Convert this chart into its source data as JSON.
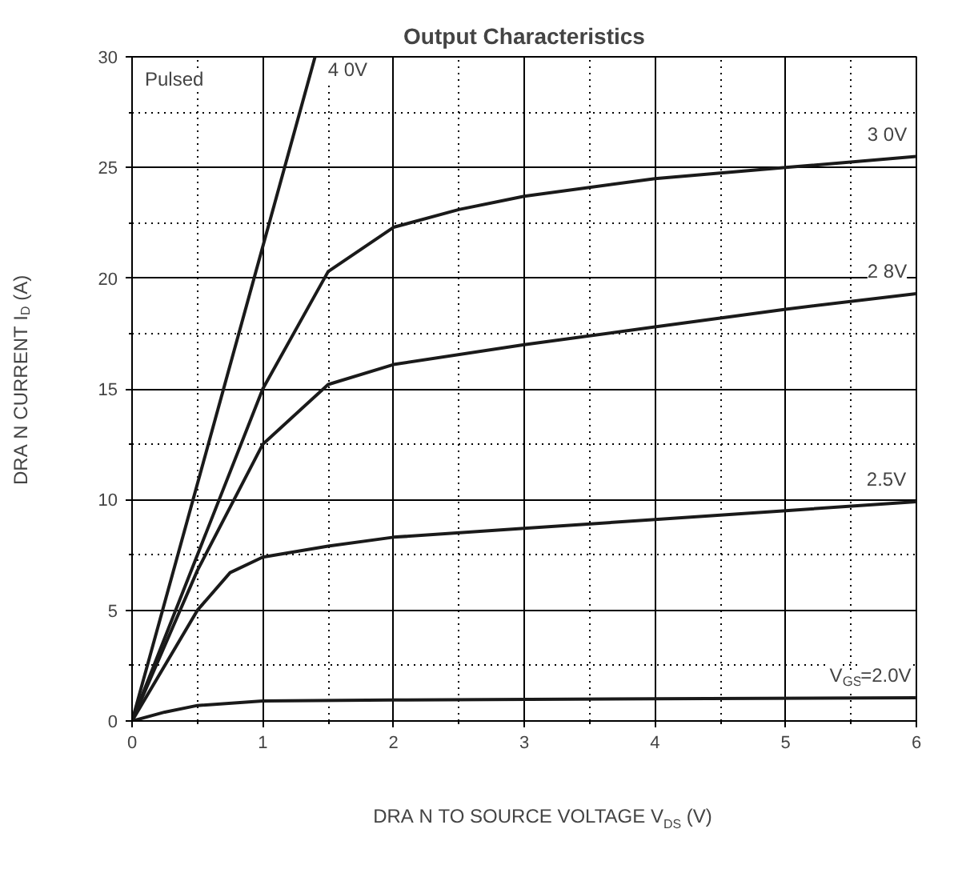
{
  "chart_data": {
    "type": "line",
    "title": "Output Characteristics",
    "xlabel": "DRA N TO SOURCE VOLTAGE V$_{DS}$ (V)",
    "ylabel": "DRA N CURRENT I$_{D}$ (A)",
    "xlim": [
      0,
      6
    ],
    "ylim": [
      0,
      30
    ],
    "xticks": [
      0,
      {
        "value": 0.5,
        "label": null
      },
      1,
      {
        "value": 1.5,
        "label": null
      },
      2,
      {
        "value": 2.5,
        "label": null
      },
      3,
      {
        "value": 3.5,
        "label": null
      },
      4,
      {
        "value": 4.5,
        "label": null
      },
      5,
      {
        "value": 5.5,
        "label": null
      },
      6
    ],
    "yticks": [
      0,
      {
        "value": 2.5,
        "label": null
      },
      5,
      {
        "value": 7.5,
        "label": null
      },
      10,
      {
        "value": 12.5,
        "label": null
      },
      15,
      {
        "value": 17.5,
        "label": null
      },
      20,
      {
        "value": 22.5,
        "label": null
      },
      25,
      {
        "value": 27.5,
        "label": null
      },
      30
    ],
    "grid": true,
    "marker": "none",
    "line_style": "solid",
    "annotations": [
      "Pulsed"
    ],
    "series": [
      {
        "name": "4 0V",
        "color": "#1a1a1a",
        "x": [
          0,
          1.4
        ],
        "values": [
          0,
          30
        ]
      },
      {
        "name": "3 0V",
        "color": "#1a1a1a",
        "x": [
          0,
          0.5,
          1,
          1.5,
          2,
          2.5,
          3,
          4,
          5,
          6
        ],
        "values": [
          0,
          7.5,
          15,
          20.3,
          22.3,
          23.1,
          23.7,
          24.5,
          25,
          25.5
        ]
      },
      {
        "name": "2 8V",
        "color": "#1a1a1a",
        "x": [
          0,
          0.5,
          1,
          1.5,
          2,
          3,
          4,
          5,
          6
        ],
        "values": [
          0,
          6.8,
          12.5,
          15.2,
          16.1,
          17,
          17.8,
          18.6,
          19.3
        ]
      },
      {
        "name": "2.5V",
        "color": "#1a1a1a",
        "x": [
          0,
          0.5,
          0.75,
          1,
          1.5,
          2,
          3,
          4,
          5,
          6
        ],
        "values": [
          0,
          5,
          6.7,
          7.4,
          7.9,
          8.3,
          8.7,
          9.1,
          9.5,
          9.9
        ]
      },
      {
        "name": "V$_{GS}$=2.0V",
        "color": "#1a1a1a",
        "x": [
          0,
          0.25,
          0.5,
          1,
          2,
          4,
          6
        ],
        "values": [
          0,
          0.4,
          0.7,
          0.9,
          0.95,
          1,
          1.05
        ]
      }
    ]
  }
}
